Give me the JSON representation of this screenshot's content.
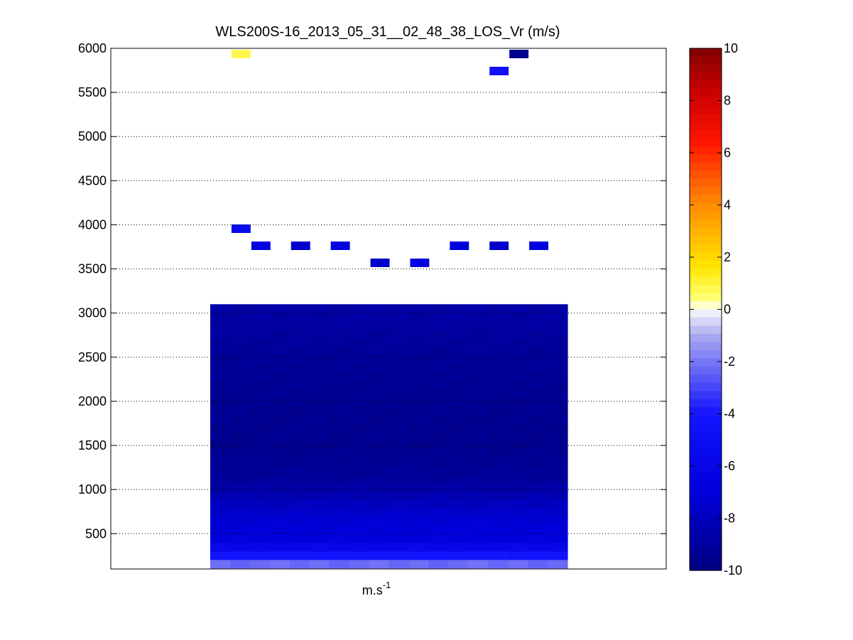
{
  "chart_data": {
    "type": "heatmap",
    "title": "WLS200S-16_2013_05_31__02_48_38_LOS_Vr (m/s)",
    "xlabel_base": "m.s",
    "xlabel_exp": "-1",
    "ylabel": "",
    "ylim": [
      100,
      6000
    ],
    "yticks": [
      500,
      1000,
      1500,
      2000,
      2500,
      3000,
      3500,
      4000,
      4500,
      5000,
      5500,
      6000
    ],
    "grid": "horizontal dotted",
    "colorbar": {
      "range": [
        -10,
        10
      ],
      "ticks": [
        10,
        8,
        6,
        4,
        2,
        0,
        -2,
        -4,
        -6,
        -8,
        -10
      ],
      "colormap": "blue-white-yellow-red"
    },
    "profile_columns": 18,
    "dense_block": {
      "y_bottom": 100,
      "y_top": 3100,
      "profile": [
        [
          100,
          -1.2
        ],
        [
          150,
          -2.2
        ],
        [
          200,
          -3.2
        ],
        [
          250,
          -4.2
        ],
        [
          300,
          -5.2
        ],
        [
          360,
          -6.2
        ],
        [
          420,
          -6.8
        ],
        [
          500,
          -7.0
        ],
        [
          700,
          -7.4
        ],
        [
          900,
          -8.3
        ],
        [
          1100,
          -9.1
        ],
        [
          1500,
          -9.5
        ],
        [
          2000,
          -9.4
        ],
        [
          2500,
          -9.2
        ],
        [
          2800,
          -9.0
        ],
        [
          3100,
          -8.7
        ]
      ]
    },
    "sparse_cells": [
      {
        "col": 1,
        "row": 0,
        "v": 0.8
      },
      {
        "col": 15,
        "row": 0,
        "v": -9.5
      },
      {
        "col": 14,
        "row": 1,
        "v": -4.5
      },
      {
        "col": 1,
        "row": 2,
        "v": -5.5
      },
      {
        "col": 2,
        "row": 3,
        "v": -6.5
      },
      {
        "col": 4,
        "row": 3,
        "v": -7.5
      },
      {
        "col": 6,
        "row": 3,
        "v": -6.5
      },
      {
        "col": 8,
        "row": 4,
        "v": -7.5
      },
      {
        "col": 10,
        "row": 4,
        "v": -6.5
      },
      {
        "col": 12,
        "row": 3,
        "v": -7.0
      },
      {
        "col": 14,
        "row": 3,
        "v": -7.5
      },
      {
        "col": 16,
        "row": 3,
        "v": -7.0
      }
    ]
  }
}
